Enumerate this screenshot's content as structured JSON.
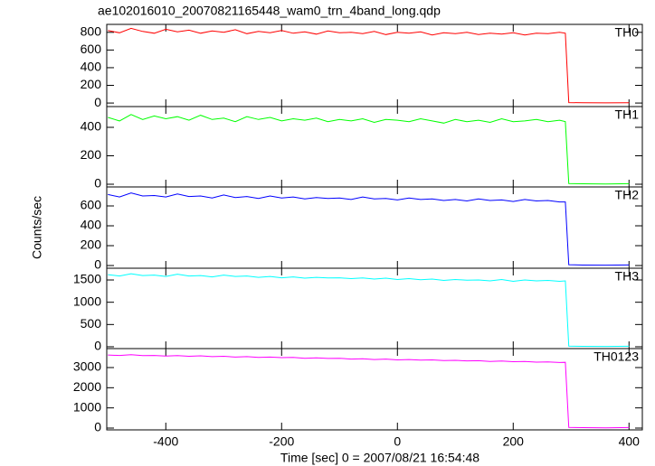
{
  "chart_data": [
    {
      "type": "line",
      "title": "ae102016010_20070821165448_wam0_trn_4band_long.qdp",
      "x": [
        -500,
        -480,
        -460,
        -440,
        -420,
        -400,
        -380,
        -360,
        -340,
        -320,
        -300,
        -280,
        -260,
        -240,
        -220,
        -200,
        -180,
        -160,
        -140,
        -120,
        -100,
        -80,
        -60,
        -40,
        -20,
        0,
        20,
        40,
        60,
        80,
        100,
        120,
        140,
        160,
        180,
        200,
        220,
        240,
        260,
        280,
        290,
        296,
        320,
        360,
        400
      ],
      "series": [
        {
          "name": "TH0",
          "color": "#ff0000",
          "values": [
            820,
            795,
            845,
            810,
            790,
            835,
            805,
            825,
            790,
            815,
            800,
            830,
            785,
            810,
            795,
            820,
            790,
            805,
            780,
            815,
            795,
            800,
            785,
            810,
            775,
            800,
            790,
            805,
            770,
            795,
            785,
            800,
            775,
            790,
            780,
            795,
            770,
            790,
            785,
            800,
            790,
            5,
            3,
            2,
            4
          ]
        }
      ],
      "xlim": [
        -502,
        423
      ],
      "ylim": [
        -40,
        890
      ],
      "yticks": [
        0,
        200,
        400,
        600,
        800
      ]
    },
    {
      "type": "line",
      "x": [
        -500,
        -480,
        -460,
        -440,
        -420,
        -400,
        -380,
        -360,
        -340,
        -320,
        -300,
        -280,
        -260,
        -240,
        -220,
        -200,
        -180,
        -160,
        -140,
        -120,
        -100,
        -80,
        -60,
        -40,
        -20,
        0,
        20,
        40,
        60,
        80,
        100,
        120,
        140,
        160,
        180,
        200,
        220,
        240,
        260,
        280,
        290,
        296,
        320,
        360,
        400
      ],
      "series": [
        {
          "name": "TH1",
          "color": "#00ff00",
          "values": [
            470,
            445,
            490,
            455,
            480,
            460,
            475,
            450,
            485,
            455,
            465,
            440,
            475,
            455,
            470,
            445,
            460,
            450,
            465,
            440,
            455,
            445,
            460,
            435,
            455,
            450,
            440,
            460,
            445,
            430,
            455,
            440,
            450,
            435,
            460,
            440,
            445,
            455,
            440,
            450,
            440,
            5,
            3,
            2,
            4
          ]
        }
      ],
      "xlim": [
        -502,
        423
      ],
      "ylim": [
        -19,
        546
      ],
      "yticks": [
        0,
        200,
        400
      ]
    },
    {
      "type": "line",
      "ylabel": "Counts/sec",
      "x": [
        -500,
        -480,
        -460,
        -440,
        -420,
        -400,
        -380,
        -360,
        -340,
        -320,
        -300,
        -280,
        -260,
        -240,
        -220,
        -200,
        -180,
        -160,
        -140,
        -120,
        -100,
        -80,
        -60,
        -40,
        -20,
        0,
        20,
        40,
        60,
        80,
        100,
        120,
        140,
        160,
        180,
        200,
        220,
        240,
        260,
        280,
        290,
        296,
        320,
        360,
        400
      ],
      "series": [
        {
          "name": "TH2",
          "color": "#0000ff",
          "values": [
            715,
            690,
            730,
            700,
            705,
            690,
            720,
            695,
            700,
            680,
            710,
            685,
            695,
            675,
            700,
            680,
            690,
            670,
            685,
            675,
            680,
            665,
            690,
            670,
            675,
            660,
            680,
            665,
            670,
            655,
            665,
            650,
            670,
            655,
            660,
            645,
            665,
            650,
            655,
            640,
            640,
            8,
            5,
            4,
            6
          ]
        }
      ],
      "xlim": [
        -502,
        423
      ],
      "ylim": [
        -27,
        791
      ],
      "yticks": [
        0,
        200,
        400,
        600
      ]
    },
    {
      "type": "line",
      "x": [
        -500,
        -480,
        -460,
        -440,
        -420,
        -400,
        -380,
        -360,
        -340,
        -320,
        -300,
        -280,
        -260,
        -240,
        -220,
        -200,
        -180,
        -160,
        -140,
        -120,
        -100,
        -80,
        -60,
        -40,
        -20,
        0,
        20,
        40,
        60,
        80,
        100,
        120,
        140,
        160,
        180,
        200,
        220,
        240,
        260,
        280,
        290,
        296,
        320,
        360,
        400
      ],
      "series": [
        {
          "name": "TH3",
          "color": "#00ffff",
          "values": [
            1620,
            1590,
            1640,
            1600,
            1610,
            1580,
            1630,
            1590,
            1600,
            1570,
            1610,
            1580,
            1590,
            1560,
            1580,
            1550,
            1570,
            1540,
            1560,
            1545,
            1550,
            1530,
            1545,
            1520,
            1540,
            1510,
            1530,
            1505,
            1520,
            1490,
            1510,
            1495,
            1500,
            1480,
            1510,
            1470,
            1500,
            1480,
            1490,
            1470,
            1480,
            15,
            10,
            8,
            12
          ]
        }
      ],
      "xlim": [
        -502,
        423
      ],
      "ylim": [
        -41,
        1764
      ],
      "yticks": [
        0,
        500,
        1000,
        1500
      ]
    },
    {
      "type": "line",
      "xlabel": "Time [sec] 0 = 2007/08/21 16:54:48",
      "x": [
        -500,
        -480,
        -460,
        -440,
        -420,
        -400,
        -380,
        -360,
        -340,
        -320,
        -300,
        -280,
        -260,
        -240,
        -220,
        -200,
        -180,
        -160,
        -140,
        -120,
        -100,
        -80,
        -60,
        -40,
        -20,
        0,
        20,
        40,
        60,
        80,
        100,
        120,
        140,
        160,
        180,
        200,
        220,
        240,
        260,
        280,
        290,
        296,
        320,
        360,
        400
      ],
      "series": [
        {
          "name": "TH0123",
          "color": "#ff00ff",
          "values": [
            3620,
            3600,
            3640,
            3590,
            3600,
            3570,
            3590,
            3560,
            3580,
            3540,
            3560,
            3520,
            3540,
            3500,
            3520,
            3490,
            3500,
            3460,
            3480,
            3450,
            3460,
            3420,
            3440,
            3400,
            3420,
            3380,
            3400,
            3370,
            3380,
            3350,
            3360,
            3330,
            3340,
            3300,
            3320,
            3290,
            3300,
            3270,
            3280,
            3250,
            3260,
            30,
            20,
            15,
            25
          ]
        }
      ],
      "xlim": [
        -502,
        423
      ],
      "ylim": [
        -90,
        3940
      ],
      "yticks": [
        0,
        1000,
        2000,
        3000
      ],
      "xticks": [
        -400,
        -200,
        0,
        200,
        400
      ]
    }
  ]
}
